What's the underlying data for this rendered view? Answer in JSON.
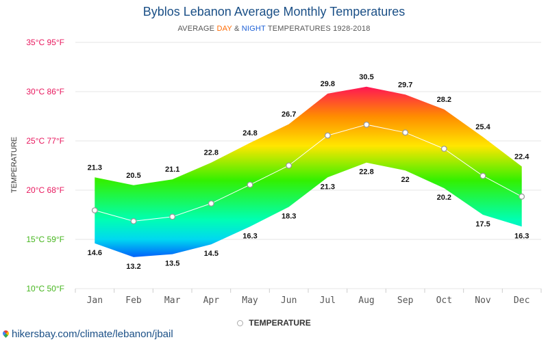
{
  "chart_data": {
    "type": "area",
    "title": "Byblos Lebanon Average Monthly Temperatures",
    "subtitle": {
      "prefix": "AVERAGE ",
      "day": "DAY",
      "amp": " & ",
      "night": "NIGHT",
      "suffix": " TEMPERATURES 1928-2018"
    },
    "ylabel": "TEMPERATURE",
    "xlabel": "",
    "ylim": [
      10,
      35
    ],
    "y_ticks": [
      {
        "value": 35,
        "label": "35°C 95°F",
        "color": "#e8175d"
      },
      {
        "value": 30,
        "label": "30°C 86°F",
        "color": "#e8175d"
      },
      {
        "value": 25,
        "label": "25°C 77°F",
        "color": "#e8175d"
      },
      {
        "value": 20,
        "label": "20°C 68°F",
        "color": "#e8175d"
      },
      {
        "value": 15,
        "label": "15°C 59°F",
        "color": "#44b51c"
      },
      {
        "value": 10,
        "label": "10°C 50°F",
        "color": "#44b51c"
      }
    ],
    "categories": [
      "Jan",
      "Feb",
      "Mar",
      "Apr",
      "May",
      "Jun",
      "Jul",
      "Aug",
      "Sep",
      "Oct",
      "Nov",
      "Dec"
    ],
    "series": [
      {
        "name": "Day",
        "values": [
          21.3,
          20.5,
          21.1,
          22.8,
          24.8,
          26.7,
          29.8,
          30.5,
          29.7,
          28.2,
          25.4,
          22.4
        ]
      },
      {
        "name": "Night",
        "values": [
          14.6,
          13.2,
          13.5,
          14.5,
          16.3,
          18.3,
          21.3,
          22.8,
          22,
          20.2,
          17.5,
          16.3
        ]
      },
      {
        "name": "TEMPERATURE",
        "values": [
          17.95,
          16.85,
          17.3,
          18.65,
          20.55,
          22.5,
          25.55,
          26.65,
          25.85,
          24.2,
          21.45,
          19.35
        ]
      }
    ],
    "legend": [
      {
        "label": "TEMPERATURE",
        "marker_color": "#aaaaaa"
      }
    ],
    "gradient_colors": {
      "hot": "#ff1654",
      "warm": "#ff8c00",
      "mild": "#ffe600",
      "fresh": "#33f000",
      "cool": "#00ffb3",
      "cold": "#00d8f0",
      "cold_deep": "#0033ff"
    },
    "grid": true
  },
  "source": "hikersbay.com/climate/lebanon/jbail"
}
